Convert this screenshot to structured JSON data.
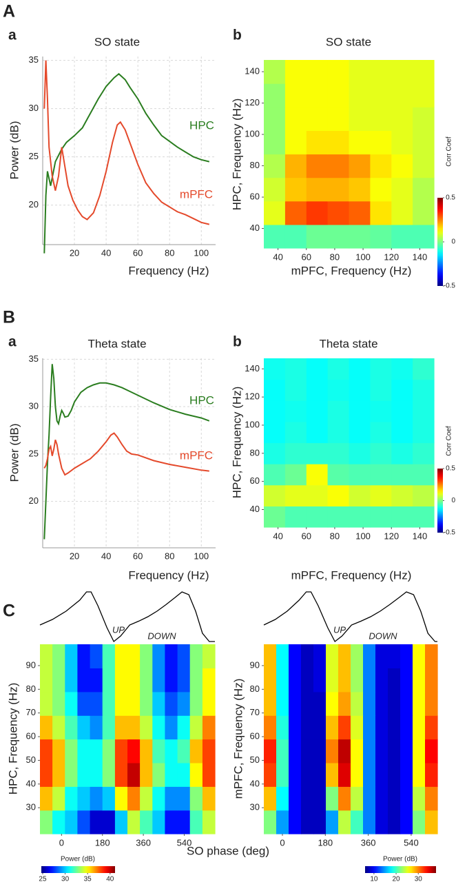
{
  "chart_data": [
    {
      "type": "line",
      "panel": "A",
      "subpanel": "a",
      "title": "SO state",
      "xlabel": "Frequency (Hz)",
      "ylabel": "Power (dB)",
      "xlim": [
        0,
        109
      ],
      "ylim": [
        15.9,
        35.4
      ],
      "xticks": [
        20,
        40,
        60,
        80,
        100
      ],
      "yticks": [
        20,
        25,
        30,
        35
      ],
      "grid": true,
      "series": [
        {
          "name": "HPC",
          "color": "#2a7d1f",
          "x": [
            1,
            2,
            3,
            5,
            8,
            12,
            15,
            20,
            25,
            30,
            35,
            40,
            45,
            48,
            52,
            55,
            60,
            65,
            70,
            75,
            80,
            85,
            90,
            95,
            100,
            105
          ],
          "values": [
            15,
            21,
            23.5,
            22,
            24.5,
            25.8,
            26.5,
            27.2,
            28,
            29.5,
            31,
            32.3,
            33.2,
            33.6,
            33,
            32.2,
            31,
            29.5,
            28.3,
            27.2,
            26.6,
            26,
            25.5,
            25,
            24.7,
            24.5
          ]
        },
        {
          "name": "mPFC",
          "color": "#e4492b",
          "x": [
            1,
            2,
            3,
            4,
            6,
            8,
            10,
            12,
            14,
            16,
            19,
            22,
            25,
            28,
            32,
            36,
            40,
            44,
            47,
            49,
            52,
            56,
            60,
            65,
            70,
            75,
            80,
            85,
            90,
            95,
            100,
            105
          ],
          "values": [
            30,
            35,
            31,
            26,
            23,
            21.5,
            23,
            26,
            24,
            22,
            20.5,
            19.5,
            18.8,
            18.5,
            19.2,
            21,
            23.5,
            26.5,
            28.3,
            28.6,
            27.8,
            26,
            24.2,
            22.3,
            21.2,
            20.3,
            19.8,
            19.3,
            19,
            18.6,
            18.2,
            18
          ]
        }
      ]
    },
    {
      "type": "heatmap",
      "subpanel": "b",
      "title": "SO state",
      "xlabel": "mPFC, Frequency (Hz)",
      "ylabel": "HPC, Frequency (Hz)",
      "xlim": [
        30,
        150
      ],
      "ylim": [
        27.5,
        147.5
      ],
      "xticks": [
        40,
        60,
        80,
        100,
        120,
        140
      ],
      "yticks": [
        40,
        60,
        80,
        100,
        120,
        140
      ],
      "colormap": "jet",
      "x": [
        37.5,
        52.5,
        67.5,
        82.5,
        97.5,
        112.5,
        127.5,
        142.5
      ],
      "y": [
        35,
        50,
        65,
        80,
        95,
        110,
        125,
        140
      ],
      "z": [
        [
          -0.05,
          -0.05,
          -0.02,
          -0.02,
          -0.02,
          -0.03,
          -0.05,
          -0.05
        ],
        [
          0.1,
          0.28,
          0.32,
          0.3,
          0.28,
          0.15,
          0.1,
          0.05
        ],
        [
          0.08,
          0.18,
          0.2,
          0.2,
          0.18,
          0.12,
          0.1,
          0.05
        ],
        [
          0.05,
          0.2,
          0.25,
          0.25,
          0.22,
          0.15,
          0.12,
          0.08
        ],
        [
          0.02,
          0.12,
          0.15,
          0.15,
          0.12,
          0.12,
          0.1,
          0.08
        ],
        [
          0.02,
          0.12,
          0.12,
          0.12,
          0.1,
          0.1,
          0.1,
          0.08
        ],
        [
          0.02,
          0.12,
          0.12,
          0.12,
          0.1,
          0.1,
          0.1,
          0.1
        ],
        [
          0.05,
          0.12,
          0.12,
          0.12,
          0.1,
          0.1,
          0.1,
          0.1
        ]
      ],
      "colorbar": {
        "label": "Corr Coef",
        "lim": [
          -0.5,
          0.5
        ],
        "ticks": [
          -0.5,
          0,
          0.5
        ],
        "orientation": "vertical"
      }
    },
    {
      "type": "line",
      "panel": "B",
      "subpanel": "a",
      "title": "Theta state",
      "xlabel": "Frequency (Hz)",
      "ylabel": "Power (dB)",
      "xlim": [
        0,
        109
      ],
      "ylim": [
        15.1,
        35.1
      ],
      "xticks": [
        20,
        40,
        60,
        80,
        100
      ],
      "yticks": [
        20,
        25,
        30,
        35
      ],
      "grid": true,
      "series": [
        {
          "name": "HPC",
          "color": "#2a7d1f",
          "x": [
            1,
            2,
            3,
            4,
            5,
            6,
            7,
            8,
            9,
            10,
            11,
            12,
            13,
            14,
            16,
            18,
            20,
            24,
            28,
            32,
            36,
            40,
            45,
            50,
            55,
            60,
            70,
            80,
            90,
            100,
            105
          ],
          "values": [
            16,
            20,
            24,
            27,
            31,
            34.5,
            33,
            30,
            28.5,
            28.2,
            29,
            29.6,
            29.3,
            28.9,
            29,
            29.6,
            30.5,
            31.5,
            32,
            32.3,
            32.5,
            32.5,
            32.3,
            32,
            31.6,
            31.2,
            30.4,
            29.7,
            29.2,
            28.8,
            28.5
          ]
        },
        {
          "name": "mPFC",
          "color": "#e4492b",
          "x": [
            1,
            2,
            3,
            4,
            5,
            6,
            7,
            8,
            9,
            10,
            12,
            14,
            16,
            20,
            25,
            30,
            35,
            40,
            43,
            45,
            47,
            50,
            53,
            56,
            60,
            70,
            80,
            90,
            100,
            105
          ],
          "values": [
            23.5,
            23.8,
            24.5,
            25.5,
            25.8,
            24.8,
            25.5,
            26.5,
            26,
            25,
            23.5,
            22.8,
            23,
            23.5,
            24,
            24.5,
            25.3,
            26.3,
            27,
            27.2,
            26.8,
            26,
            25.3,
            25,
            24.9,
            24.3,
            23.9,
            23.6,
            23.3,
            23.2
          ]
        }
      ]
    },
    {
      "type": "heatmap",
      "subpanel": "b",
      "title": "Theta state",
      "xlabel": "mPFC, Frequency (Hz)",
      "ylabel": "HPC, Frequency (Hz)",
      "xlim": [
        30,
        150
      ],
      "ylim": [
        27.5,
        147.5
      ],
      "xticks": [
        40,
        60,
        80,
        100,
        120,
        140
      ],
      "yticks": [
        40,
        60,
        80,
        100,
        120,
        140
      ],
      "colormap": "jet",
      "x": [
        37.5,
        52.5,
        67.5,
        82.5,
        97.5,
        112.5,
        127.5,
        142.5
      ],
      "y": [
        35,
        50,
        65,
        80,
        95,
        110,
        125,
        140
      ],
      "z": [
        [
          -0.02,
          -0.05,
          -0.05,
          -0.05,
          -0.05,
          -0.05,
          -0.05,
          -0.05
        ],
        [
          0.08,
          0.1,
          0.1,
          0.12,
          0.08,
          0.1,
          0.08,
          0.06
        ],
        [
          -0.05,
          -0.02,
          0.12,
          -0.04,
          -0.05,
          -0.05,
          -0.05,
          -0.05
        ],
        [
          -0.1,
          -0.08,
          -0.08,
          -0.08,
          -0.1,
          -0.08,
          -0.1,
          -0.08
        ],
        [
          -0.12,
          -0.1,
          -0.12,
          -0.1,
          -0.12,
          -0.1,
          -0.12,
          -0.1
        ],
        [
          -0.12,
          -0.11,
          -0.12,
          -0.1,
          -0.12,
          -0.11,
          -0.12,
          -0.1
        ],
        [
          -0.12,
          -0.1,
          -0.12,
          -0.11,
          -0.12,
          -0.1,
          -0.12,
          -0.1
        ],
        [
          -0.11,
          -0.1,
          -0.12,
          -0.1,
          -0.12,
          -0.1,
          -0.11,
          -0.08
        ]
      ],
      "colorbar": {
        "label": "Corr Coef",
        "lim": [
          -0.5,
          0.5
        ],
        "ticks": [
          -0.5,
          0,
          0.5
        ],
        "orientation": "vertical"
      }
    },
    {
      "type": "heatmap",
      "panel": "C",
      "xlabel": "SO phase (deg)",
      "ylabel": "HPC, Frequency (Hz)",
      "xlim": [
        -95,
        675
      ],
      "ylim": [
        19,
        99
      ],
      "xticks": [
        0,
        180,
        360,
        540
      ],
      "yticks": [
        30,
        40,
        50,
        60,
        70,
        80,
        90
      ],
      "colormap": "jet",
      "x": [
        -67.5,
        -12.5,
        42.5,
        97.5,
        152.5,
        207.5,
        262.5,
        317.5,
        372.5,
        427.5,
        482.5,
        537.5,
        592.5,
        647.5
      ],
      "y": [
        24,
        34,
        44,
        54,
        64,
        74,
        84,
        94
      ],
      "z": [
        [
          33,
          31,
          30,
          28,
          26,
          26,
          30,
          34,
          32,
          30,
          27,
          27,
          32,
          34
        ],
        [
          36,
          34,
          31,
          30,
          29,
          30,
          35,
          37,
          34,
          31,
          29,
          29,
          33,
          36
        ],
        [
          38,
          36,
          33,
          31,
          31,
          33,
          38,
          40,
          36,
          33,
          31,
          31,
          35,
          38
        ],
        [
          38,
          36,
          33,
          31,
          31,
          33,
          38,
          39,
          36,
          32,
          31,
          32,
          36,
          38
        ],
        [
          36,
          34,
          32,
          30,
          29,
          32,
          36,
          36,
          34,
          31,
          29,
          31,
          34,
          37
        ],
        [
          34,
          33,
          31,
          28,
          28,
          32,
          35,
          35,
          33,
          30,
          28,
          29,
          33,
          35
        ],
        [
          34,
          33,
          30,
          27,
          27,
          32,
          35,
          35,
          33,
          29,
          27,
          28,
          33,
          35
        ],
        [
          34,
          33,
          30,
          27,
          28,
          32,
          35,
          35,
          33,
          29,
          27,
          28,
          33,
          34
        ]
      ],
      "wave": {
        "x": [
          -95,
          -40,
          20,
          80,
          110,
          130,
          160,
          200,
          230,
          260,
          300,
          340,
          380,
          420,
          460,
          500,
          530,
          560,
          590,
          620,
          650,
          675
        ],
        "values": [
          0.35,
          0.45,
          0.6,
          0.8,
          0.95,
          0.95,
          0.7,
          0.3,
          0.05,
          0.15,
          0.35,
          0.42,
          0.5,
          0.6,
          0.72,
          0.85,
          0.95,
          0.9,
          0.6,
          0.2,
          0.05,
          0.05
        ]
      },
      "annotations": [
        "UP",
        "DOWN"
      ],
      "colorbar": {
        "label": "Power (dB)",
        "lim": [
          24.7,
          41.1
        ],
        "ticks": [
          25,
          30,
          35,
          40
        ],
        "orientation": "horizontal"
      }
    },
    {
      "type": "heatmap",
      "ylabel": "mPFC, Frequency (Hz)",
      "xlim": [
        -78,
        650
      ],
      "ylim": [
        19,
        99
      ],
      "xticks": [
        0,
        180,
        360,
        540
      ],
      "yticks": [
        30,
        40,
        50,
        60,
        70,
        80,
        90
      ],
      "colormap": "jet",
      "x": [
        -52,
        0,
        52,
        104,
        156,
        208,
        260,
        312,
        364,
        416,
        468,
        520,
        572,
        624
      ],
      "y": [
        24,
        34,
        44,
        54,
        64,
        74,
        84,
        94
      ],
      "z": [
        [
          22,
          15,
          10,
          8,
          8,
          15,
          24,
          20,
          14,
          9,
          8,
          10,
          22,
          28
        ],
        [
          28,
          18,
          10,
          8,
          8,
          22,
          30,
          24,
          14,
          9,
          8,
          10,
          24,
          30
        ],
        [
          32,
          20,
          10,
          8,
          8,
          28,
          35,
          26,
          14,
          9,
          8,
          10,
          26,
          33
        ],
        [
          33,
          20,
          10,
          8,
          8,
          30,
          36,
          26,
          14,
          9,
          8,
          10,
          26,
          34
        ],
        [
          30,
          19,
          10,
          8,
          8,
          28,
          32,
          25,
          14,
          9,
          8,
          10,
          26,
          32
        ],
        [
          28,
          18,
          10,
          8,
          8,
          26,
          29,
          24,
          14,
          9,
          8,
          10,
          26,
          30
        ],
        [
          28,
          18,
          10,
          8,
          9,
          25,
          28,
          23,
          14,
          9,
          8,
          10,
          26,
          30
        ],
        [
          28,
          18,
          10,
          8,
          9,
          25,
          28,
          23,
          14,
          9,
          9,
          10,
          26,
          30
        ]
      ],
      "wave": {
        "x": [
          -78,
          -30,
          20,
          70,
          100,
          120,
          150,
          190,
          220,
          250,
          290,
          330,
          370,
          410,
          450,
          490,
          520,
          550,
          580,
          610,
          640,
          650
        ],
        "values": [
          0.35,
          0.45,
          0.6,
          0.8,
          0.95,
          0.95,
          0.7,
          0.3,
          0.05,
          0.15,
          0.35,
          0.42,
          0.5,
          0.6,
          0.72,
          0.85,
          0.95,
          0.9,
          0.6,
          0.2,
          0.05,
          0.05
        ]
      },
      "annotations": [
        "UP",
        "DOWN"
      ],
      "colorbar": {
        "label": "Power (dB)",
        "lim": [
          6,
          38
        ],
        "ticks": [
          10,
          20,
          30
        ],
        "orientation": "horizontal"
      }
    }
  ]
}
